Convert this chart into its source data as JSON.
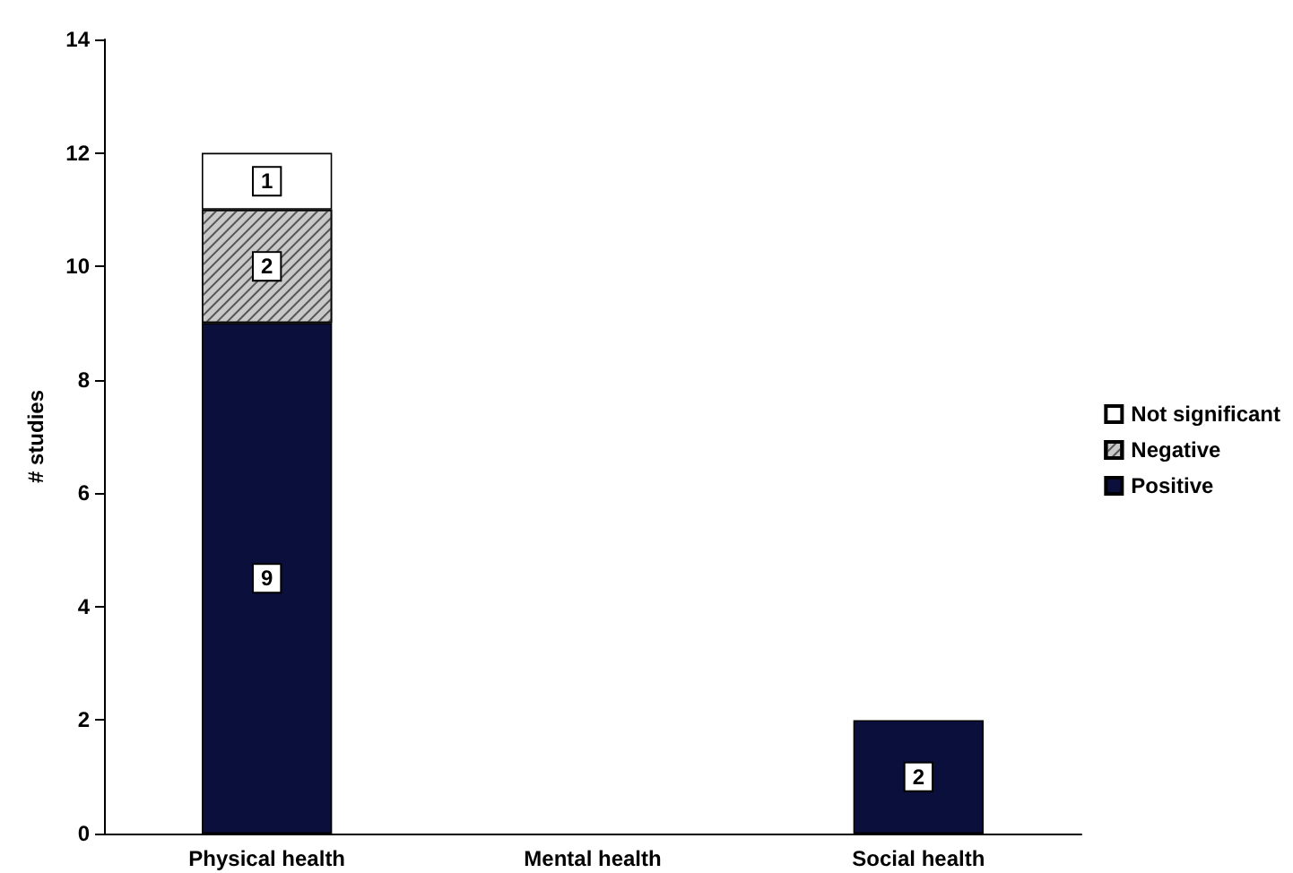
{
  "chart_data": {
    "type": "bar",
    "stacked": true,
    "ylabel": "# studies",
    "categories": [
      "Physical health",
      "Mental health",
      "Social health"
    ],
    "series": [
      {
        "name": "Positive",
        "color": "#0a0f3c",
        "values": [
          9,
          0,
          2
        ],
        "value_labels": [
          "9",
          null,
          "2"
        ]
      },
      {
        "name": "Negative",
        "color": "#c8c8c8",
        "values": [
          2,
          0,
          0
        ],
        "value_labels": [
          "2",
          null,
          null
        ]
      },
      {
        "name": "Not significant",
        "color": "#ffffff",
        "values": [
          1,
          0,
          0
        ],
        "value_labels": [
          "1",
          null,
          null
        ]
      }
    ],
    "ylim": [
      0,
      14
    ],
    "yticks": [
      0,
      2,
      4,
      6,
      8,
      10,
      12,
      14
    ],
    "grid": false,
    "legend": "right"
  }
}
